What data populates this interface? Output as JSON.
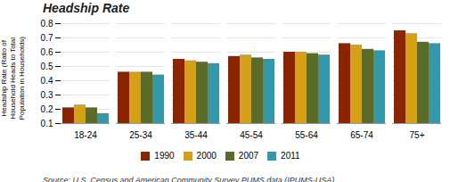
{
  "chart_data": {
    "type": "bar",
    "title": "Headship Rate",
    "ylabel": "Headship Rate (Ratio of\nHousehold Heads to Total\nPopulation in Households)",
    "caption": "Source:  U.S. Census and American Community Survey PUMS data (IPUMS-USA)",
    "categories": [
      "18-24",
      "25-34",
      "35-44",
      "45-54",
      "55-64",
      "65-74",
      "75+"
    ],
    "series": [
      {
        "name": "1990",
        "color": "#8B2500",
        "values": [
          0.21,
          0.46,
          0.55,
          0.57,
          0.6,
          0.66,
          0.75
        ]
      },
      {
        "name": "2000",
        "color": "#D4A017",
        "values": [
          0.23,
          0.46,
          0.54,
          0.58,
          0.6,
          0.65,
          0.73
        ]
      },
      {
        "name": "2007",
        "color": "#5A6B2A",
        "values": [
          0.21,
          0.46,
          0.53,
          0.56,
          0.59,
          0.62,
          0.67
        ]
      },
      {
        "name": "2011",
        "color": "#3399AA",
        "values": [
          0.17,
          0.44,
          0.52,
          0.55,
          0.58,
          0.61,
          0.66
        ]
      }
    ],
    "ylim": [
      0.1,
      0.8
    ],
    "yticks": [
      0.1,
      0.2,
      0.3,
      0.4,
      0.5,
      0.6,
      0.7,
      0.8
    ],
    "grid": true,
    "legend": "bottom"
  }
}
